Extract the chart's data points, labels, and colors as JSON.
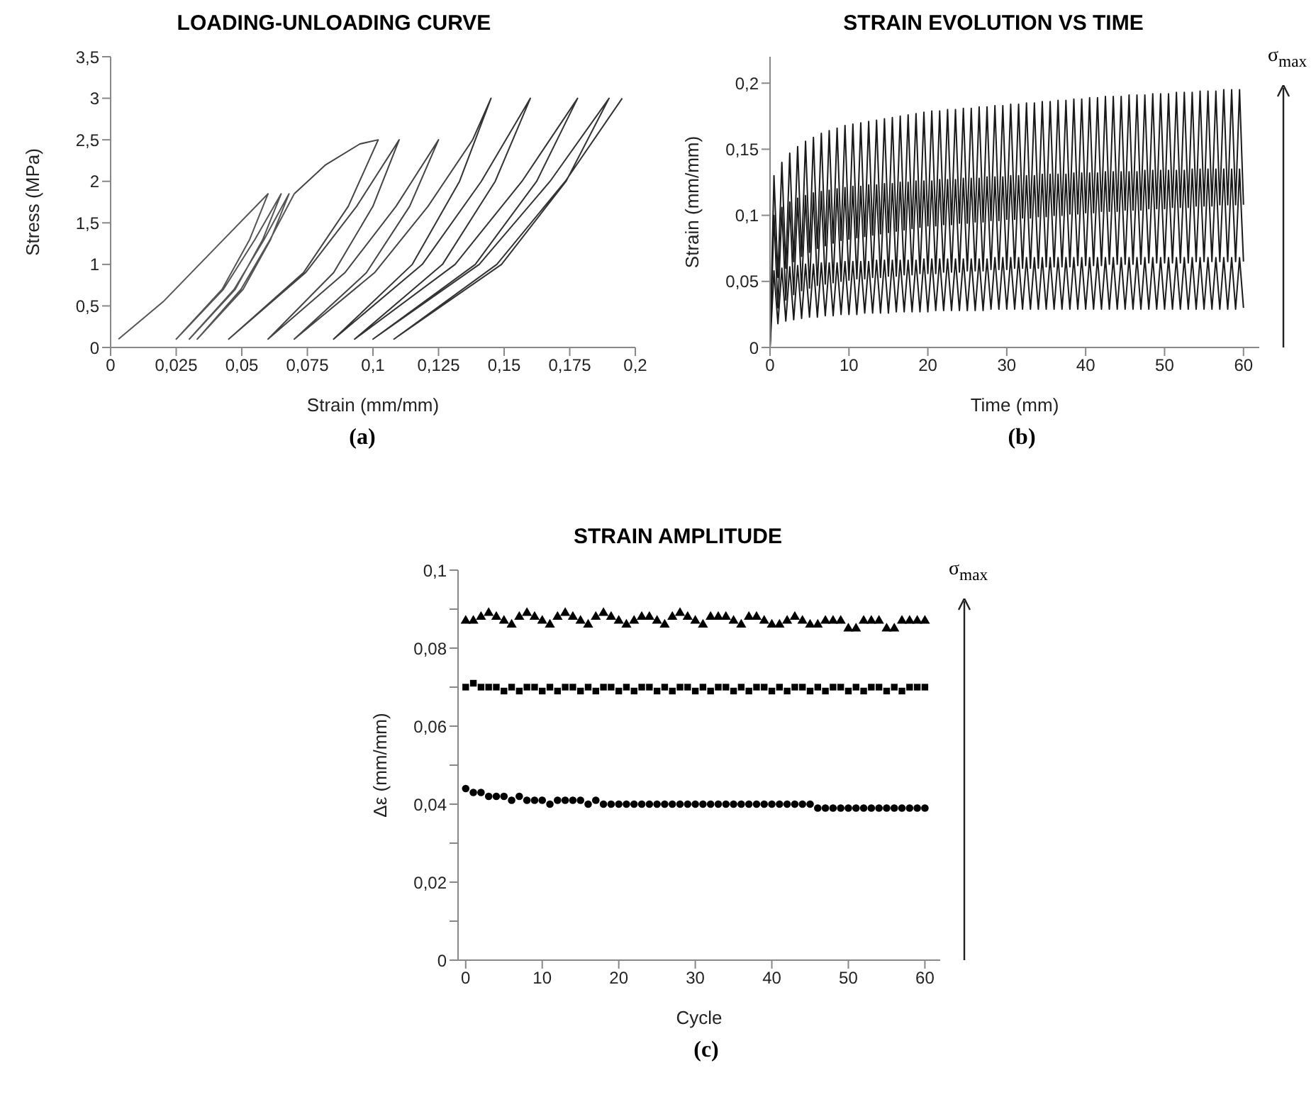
{
  "chart_data": [
    {
      "type": "line",
      "title": "LOADING-UNLOADING CURVE",
      "xlabel": "Strain (mm/mm)",
      "ylabel": "Stress (MPa)",
      "annotations": [
        "(a)"
      ],
      "xlim": [
        0,
        0.2
      ],
      "xticks": [
        0,
        {
          "value": 0.025,
          "label": "0,025"
        },
        {
          "value": 0.05,
          "label": "0,05"
        },
        {
          "value": 0.075,
          "label": "0,075"
        },
        {
          "value": 0.1,
          "label": "0,1"
        },
        {
          "value": 0.125,
          "label": "0,125"
        },
        {
          "value": 0.15,
          "label": "0,15"
        },
        {
          "value": 0.175,
          "label": "0,175"
        },
        {
          "value": 0.2,
          "label": "0,2"
        }
      ],
      "ylim": [
        0,
        3.5
      ],
      "yticks": [
        0,
        {
          "value": 0.5,
          "label": "0,5"
        },
        1,
        {
          "value": 1.5,
          "label": "1,5"
        },
        2,
        {
          "value": 2.5,
          "label": "2,5"
        },
        3,
        {
          "value": 3.5,
          "label": "3,5"
        }
      ],
      "marker": "none",
      "line_style": "solid",
      "series": [
        {
          "color": "#555555",
          "x": [
            0.003,
            0.02,
            0.04,
            0.06,
            0.053,
            0.0425,
            0.025,
            0.043,
            0.055,
            0.065,
            0.058,
            0.0475,
            0.03,
            0.0471,
            0.0585,
            0.068,
            0.061,
            0.0505,
            0.033,
            0.0497,
            0.0608,
            0.07
          ],
          "values": [
            0.1,
            0.55,
            1.2,
            1.85,
            1.3,
            0.7,
            0.1,
            0.7,
            1.3,
            1.85,
            1.3,
            0.7,
            0.1,
            0.7,
            1.3,
            1.85,
            1.3,
            0.7,
            0.1,
            0.7,
            1.3,
            1.85
          ]
        },
        {
          "color": "#444444",
          "x": [
            0.07,
            0.082,
            0.095,
            0.102,
            0.0906,
            0.0735,
            0.045,
            0.0743,
            0.0938,
            0.11,
            0.1,
            0.085,
            0.06,
            0.0893,
            0.1088,
            0.125,
            0.114,
            0.0975,
            0.07,
            0.1006,
            0.121,
            0.138
          ],
          "values": [
            1.85,
            2.2,
            2.45,
            2.5,
            1.7,
            0.9,
            0.1,
            0.9,
            1.7,
            2.5,
            1.7,
            0.9,
            0.1,
            0.9,
            1.7,
            2.5,
            1.7,
            0.9,
            0.1,
            0.9,
            1.7,
            2.5
          ]
        },
        {
          "color": "#333333",
          "x": [
            0.138,
            0.145,
            0.133,
            0.115,
            0.085,
            0.1188,
            0.1413,
            0.16,
            0.1466,
            0.1265,
            0.093,
            0.1313,
            0.1568,
            0.178,
            0.1624,
            0.139,
            0.1,
            0.1405,
            0.1675,
            0.19,
            0.1736,
            0.149,
            0.108,
            0.1472,
            0.1733,
            0.195
          ],
          "values": [
            2.5,
            3,
            2,
            1,
            0.1,
            1,
            2,
            3,
            2,
            1,
            0.1,
            1,
            2,
            3,
            2,
            1,
            0.1,
            1,
            2,
            3,
            2,
            1,
            0.1,
            1,
            2,
            3
          ]
        }
      ]
    },
    {
      "type": "line",
      "title": "STRAIN EVOLUTION VS TIME",
      "xlabel": "Time (mm)",
      "ylabel": "Strain (mm/mm)",
      "annotations": [
        "(b)",
        "σ$_{max}$"
      ],
      "xlim": [
        0,
        62
      ],
      "xticks": [
        0,
        10,
        20,
        30,
        40,
        50,
        60
      ],
      "ylim": [
        0,
        0.22
      ],
      "yticks": [
        0,
        {
          "value": 0.05,
          "label": "0,05"
        },
        {
          "value": 0.1,
          "label": "0,1"
        },
        {
          "value": 0.15,
          "label": "0,15"
        },
        {
          "value": 0.2,
          "label": "0,2"
        }
      ],
      "marker": "none",
      "line_style": "solid",
      "x": [
        0,
        0.5,
        1,
        1.5,
        2,
        2.5,
        3,
        3.5,
        4,
        4.5,
        5,
        5.5,
        6,
        6.5,
        7,
        7.5,
        8,
        8.5,
        9,
        9.5,
        10,
        10.5,
        11,
        11.5,
        12,
        12.5,
        13,
        13.5,
        14,
        14.5,
        15,
        15.5,
        16,
        16.5,
        17,
        17.5,
        18,
        18.5,
        19,
        19.5,
        20,
        20.5,
        21,
        21.5,
        22,
        22.5,
        23,
        23.5,
        24,
        24.5,
        25,
        25.5,
        26,
        26.5,
        27,
        27.5,
        28,
        28.5,
        29,
        29.5,
        30,
        30.5,
        31,
        31.5,
        32,
        32.5,
        33,
        33.5,
        34,
        34.5,
        35,
        35.5,
        36,
        36.5,
        37,
        37.5,
        38,
        38.5,
        39,
        39.5,
        40,
        40.5,
        41,
        41.5,
        42,
        42.5,
        43,
        43.5,
        44,
        44.5,
        45,
        45.5,
        46,
        46.5,
        47,
        47.5,
        48,
        48.5,
        49,
        49.5,
        50,
        50.5,
        51,
        51.5,
        52,
        52.5,
        53,
        53.5,
        54,
        54.5,
        55,
        55.5,
        56,
        56.5,
        57,
        57.5,
        58,
        58.5,
        59,
        59.5,
        60
      ],
      "series": [
        {
          "color": "#1a1a1a",
          "values": [
            0,
            0.13,
            0.053,
            0.14,
            0.06,
            0.147,
            0.065,
            0.152,
            0.069,
            0.156,
            0.072,
            0.159,
            0.075,
            0.162,
            0.077,
            0.164,
            0.079,
            0.166,
            0.081,
            0.168,
            0.082,
            0.169,
            0.083,
            0.17,
            0.084,
            0.171,
            0.085,
            0.172,
            0.086,
            0.173,
            0.087,
            0.174,
            0.088,
            0.175,
            0.089,
            0.176,
            0.09,
            0.177,
            0.091,
            0.178,
            0.092,
            0.179,
            0.092,
            0.179,
            0.093,
            0.18,
            0.093,
            0.18,
            0.094,
            0.181,
            0.094,
            0.181,
            0.095,
            0.182,
            0.095,
            0.182,
            0.096,
            0.183,
            0.096,
            0.183,
            0.097,
            0.184,
            0.097,
            0.184,
            0.098,
            0.185,
            0.098,
            0.185,
            0.099,
            0.186,
            0.099,
            0.186,
            0.1,
            0.187,
            0.1,
            0.187,
            0.101,
            0.188,
            0.101,
            0.188,
            0.102,
            0.189,
            0.102,
            0.189,
            0.103,
            0.19,
            0.103,
            0.19,
            0.103,
            0.19,
            0.104,
            0.191,
            0.104,
            0.191,
            0.104,
            0.191,
            0.105,
            0.192,
            0.105,
            0.192,
            0.105,
            0.192,
            0.106,
            0.193,
            0.106,
            0.193,
            0.106,
            0.193,
            0.107,
            0.194,
            0.107,
            0.194,
            0.107,
            0.194,
            0.108,
            0.195,
            0.108,
            0.195,
            0.108,
            0.195,
            0.108
          ]
        },
        {
          "color": "#1a1a1a",
          "values": [
            0,
            0.1,
            0.03,
            0.106,
            0.036,
            0.11,
            0.04,
            0.113,
            0.043,
            0.115,
            0.045,
            0.117,
            0.047,
            0.118,
            0.048,
            0.119,
            0.049,
            0.12,
            0.05,
            0.121,
            0.051,
            0.122,
            0.052,
            0.122,
            0.052,
            0.123,
            0.053,
            0.123,
            0.053,
            0.124,
            0.054,
            0.124,
            0.054,
            0.125,
            0.055,
            0.125,
            0.055,
            0.126,
            0.056,
            0.126,
            0.056,
            0.126,
            0.056,
            0.127,
            0.057,
            0.127,
            0.057,
            0.127,
            0.057,
            0.128,
            0.058,
            0.128,
            0.058,
            0.128,
            0.058,
            0.129,
            0.059,
            0.129,
            0.059,
            0.129,
            0.059,
            0.13,
            0.06,
            0.13,
            0.06,
            0.13,
            0.06,
            0.13,
            0.06,
            0.131,
            0.061,
            0.131,
            0.061,
            0.131,
            0.061,
            0.131,
            0.061,
            0.132,
            0.062,
            0.132,
            0.062,
            0.132,
            0.062,
            0.132,
            0.062,
            0.133,
            0.063,
            0.133,
            0.063,
            0.133,
            0.063,
            0.133,
            0.063,
            0.133,
            0.063,
            0.134,
            0.064,
            0.134,
            0.064,
            0.134,
            0.064,
            0.134,
            0.064,
            0.134,
            0.064,
            0.134,
            0.064,
            0.135,
            0.065,
            0.135,
            0.065,
            0.135,
            0.065,
            0.135,
            0.065,
            0.135,
            0.065,
            0.135,
            0.065,
            0.135,
            0.065
          ]
        },
        {
          "color": "#1a1a1a",
          "values": [
            0,
            0.058,
            0.018,
            0.06,
            0.02,
            0.061,
            0.021,
            0.062,
            0.022,
            0.063,
            0.023,
            0.063,
            0.023,
            0.064,
            0.024,
            0.064,
            0.024,
            0.064,
            0.025,
            0.065,
            0.025,
            0.065,
            0.025,
            0.065,
            0.026,
            0.065,
            0.026,
            0.066,
            0.026,
            0.066,
            0.026,
            0.066,
            0.027,
            0.066,
            0.027,
            0.066,
            0.027,
            0.066,
            0.027,
            0.067,
            0.027,
            0.067,
            0.028,
            0.067,
            0.028,
            0.067,
            0.028,
            0.067,
            0.028,
            0.067,
            0.028,
            0.067,
            0.028,
            0.067,
            0.028,
            0.067,
            0.029,
            0.068,
            0.029,
            0.068,
            0.029,
            0.068,
            0.029,
            0.068,
            0.029,
            0.068,
            0.029,
            0.068,
            0.029,
            0.068,
            0.029,
            0.068,
            0.029,
            0.068,
            0.029,
            0.068,
            0.029,
            0.068,
            0.029,
            0.068,
            0.029,
            0.068,
            0.029,
            0.068,
            0.029,
            0.068,
            0.029,
            0.068,
            0.029,
            0.068,
            0.029,
            0.068,
            0.029,
            0.068,
            0.029,
            0.068,
            0.029,
            0.068,
            0.029,
            0.068,
            0.029,
            0.068,
            0.029,
            0.068,
            0.029,
            0.068,
            0.029,
            0.068,
            0.029,
            0.068,
            0.029,
            0.068,
            0.029,
            0.068,
            0.029,
            0.068,
            0.029,
            0.068,
            0.029,
            0.068,
            0.03
          ]
        }
      ]
    },
    {
      "type": "scatter",
      "title": "STRAIN AMPLITUDE",
      "xlabel": "Cycle",
      "ylabel": "Δε (mm/mm)",
      "annotations": [
        "(c)",
        "σ$_{max}$"
      ],
      "xlim": [
        -1,
        62
      ],
      "xticks": [
        0,
        10,
        20,
        30,
        40,
        50,
        60
      ],
      "ylim": [
        0,
        0.1
      ],
      "yticks": [
        0,
        {
          "value": 0.01,
          "label": null
        },
        {
          "value": 0.02,
          "label": "0,02"
        },
        {
          "value": 0.03,
          "label": null
        },
        {
          "value": 0.04,
          "label": "0,04"
        },
        {
          "value": 0.05,
          "label": null
        },
        {
          "value": 0.06,
          "label": "0,06"
        },
        {
          "value": 0.07,
          "label": null
        },
        {
          "value": 0.08,
          "label": "0,08"
        },
        {
          "value": 0.09,
          "label": null
        },
        {
          "value": 0.1,
          "label": "0,1"
        }
      ],
      "x": [
        0,
        1,
        2,
        3,
        4,
        5,
        6,
        7,
        8,
        9,
        10,
        11,
        12,
        13,
        14,
        15,
        16,
        17,
        18,
        19,
        20,
        21,
        22,
        23,
        24,
        25,
        26,
        27,
        28,
        29,
        30,
        31,
        32,
        33,
        34,
        35,
        36,
        37,
        38,
        39,
        40,
        41,
        42,
        43,
        44,
        45,
        46,
        47,
        48,
        49,
        50,
        51,
        52,
        53,
        54,
        55,
        56,
        57,
        58,
        59,
        60
      ],
      "series": [
        {
          "color": "#000000",
          "marker": "triangle",
          "values": [
            0.087,
            0.087,
            0.088,
            0.089,
            0.088,
            0.087,
            0.086,
            0.088,
            0.089,
            0.088,
            0.087,
            0.086,
            0.088,
            0.089,
            0.088,
            0.087,
            0.086,
            0.088,
            0.089,
            0.088,
            0.087,
            0.086,
            0.087,
            0.088,
            0.088,
            0.087,
            0.086,
            0.088,
            0.089,
            0.088,
            0.087,
            0.086,
            0.088,
            0.088,
            0.088,
            0.087,
            0.086,
            0.088,
            0.088,
            0.087,
            0.086,
            0.086,
            0.087,
            0.088,
            0.087,
            0.086,
            0.086,
            0.087,
            0.087,
            0.087,
            0.085,
            0.085,
            0.087,
            0.087,
            0.087,
            0.085,
            0.085,
            0.087,
            0.087,
            0.087,
            0.087
          ]
        },
        {
          "color": "#000000",
          "marker": "square",
          "values": [
            0.07,
            0.071,
            0.07,
            0.07,
            0.07,
            0.069,
            0.07,
            0.069,
            0.07,
            0.07,
            0.069,
            0.07,
            0.069,
            0.07,
            0.07,
            0.069,
            0.07,
            0.069,
            0.07,
            0.07,
            0.069,
            0.07,
            0.069,
            0.07,
            0.07,
            0.069,
            0.07,
            0.069,
            0.07,
            0.07,
            0.069,
            0.07,
            0.069,
            0.07,
            0.07,
            0.069,
            0.07,
            0.069,
            0.07,
            0.07,
            0.069,
            0.07,
            0.069,
            0.07,
            0.07,
            0.069,
            0.07,
            0.069,
            0.07,
            0.07,
            0.069,
            0.07,
            0.069,
            0.07,
            0.07,
            0.069,
            0.07,
            0.069,
            0.07,
            0.07,
            0.07
          ]
        },
        {
          "color": "#000000",
          "marker": "circle",
          "values": [
            0.044,
            0.043,
            0.043,
            0.042,
            0.042,
            0.042,
            0.041,
            0.042,
            0.041,
            0.041,
            0.041,
            0.04,
            0.041,
            0.041,
            0.041,
            0.041,
            0.04,
            0.041,
            0.04,
            0.04,
            0.04,
            0.04,
            0.04,
            0.04,
            0.04,
            0.04,
            0.04,
            0.04,
            0.04,
            0.04,
            0.04,
            0.04,
            0.04,
            0.04,
            0.04,
            0.04,
            0.04,
            0.04,
            0.04,
            0.04,
            0.04,
            0.04,
            0.04,
            0.04,
            0.04,
            0.04,
            0.039,
            0.039,
            0.039,
            0.039,
            0.039,
            0.039,
            0.039,
            0.039,
            0.039,
            0.039,
            0.039,
            0.039,
            0.039,
            0.039,
            0.039
          ]
        }
      ]
    }
  ]
}
